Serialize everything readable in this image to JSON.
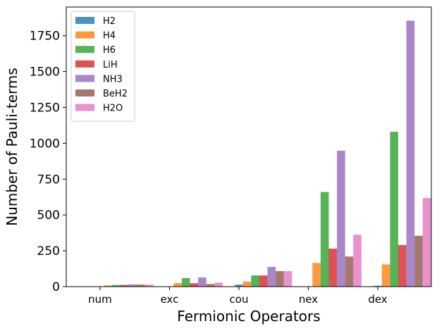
{
  "chart_data": {
    "type": "bar",
    "title": "",
    "xlabel": "Fermionic Operators",
    "ylabel": "Number of Pauli-terms",
    "categories": [
      "num",
      "exc",
      "cou",
      "nex",
      "dex"
    ],
    "ylim": [
      0,
      1950
    ],
    "yticks": [
      0,
      250,
      500,
      750,
      1000,
      1250,
      1500,
      1750
    ],
    "legend_position": "top-left",
    "series": [
      {
        "name": "H2",
        "color": "#1f77b4",
        "values": [
          2,
          0,
          14,
          0,
          6
        ]
      },
      {
        "name": "H4",
        "color": "#ff7f0e",
        "values": [
          8,
          24,
          36,
          165,
          155
        ]
      },
      {
        "name": "H6",
        "color": "#2ca02c",
        "values": [
          12,
          60,
          78,
          660,
          1080
        ]
      },
      {
        "name": "LiH",
        "color": "#d62728",
        "values": [
          12,
          24,
          78,
          265,
          290
        ]
      },
      {
        "name": "NH3",
        "color": "#9467bd",
        "values": [
          16,
          64,
          138,
          948,
          1855
        ]
      },
      {
        "name": "BeH2",
        "color": "#8c564b",
        "values": [
          14,
          18,
          108,
          210,
          355
        ]
      },
      {
        "name": "H2O",
        "color": "#e377c2",
        "values": [
          14,
          28,
          108,
          362,
          618
        ]
      }
    ]
  }
}
